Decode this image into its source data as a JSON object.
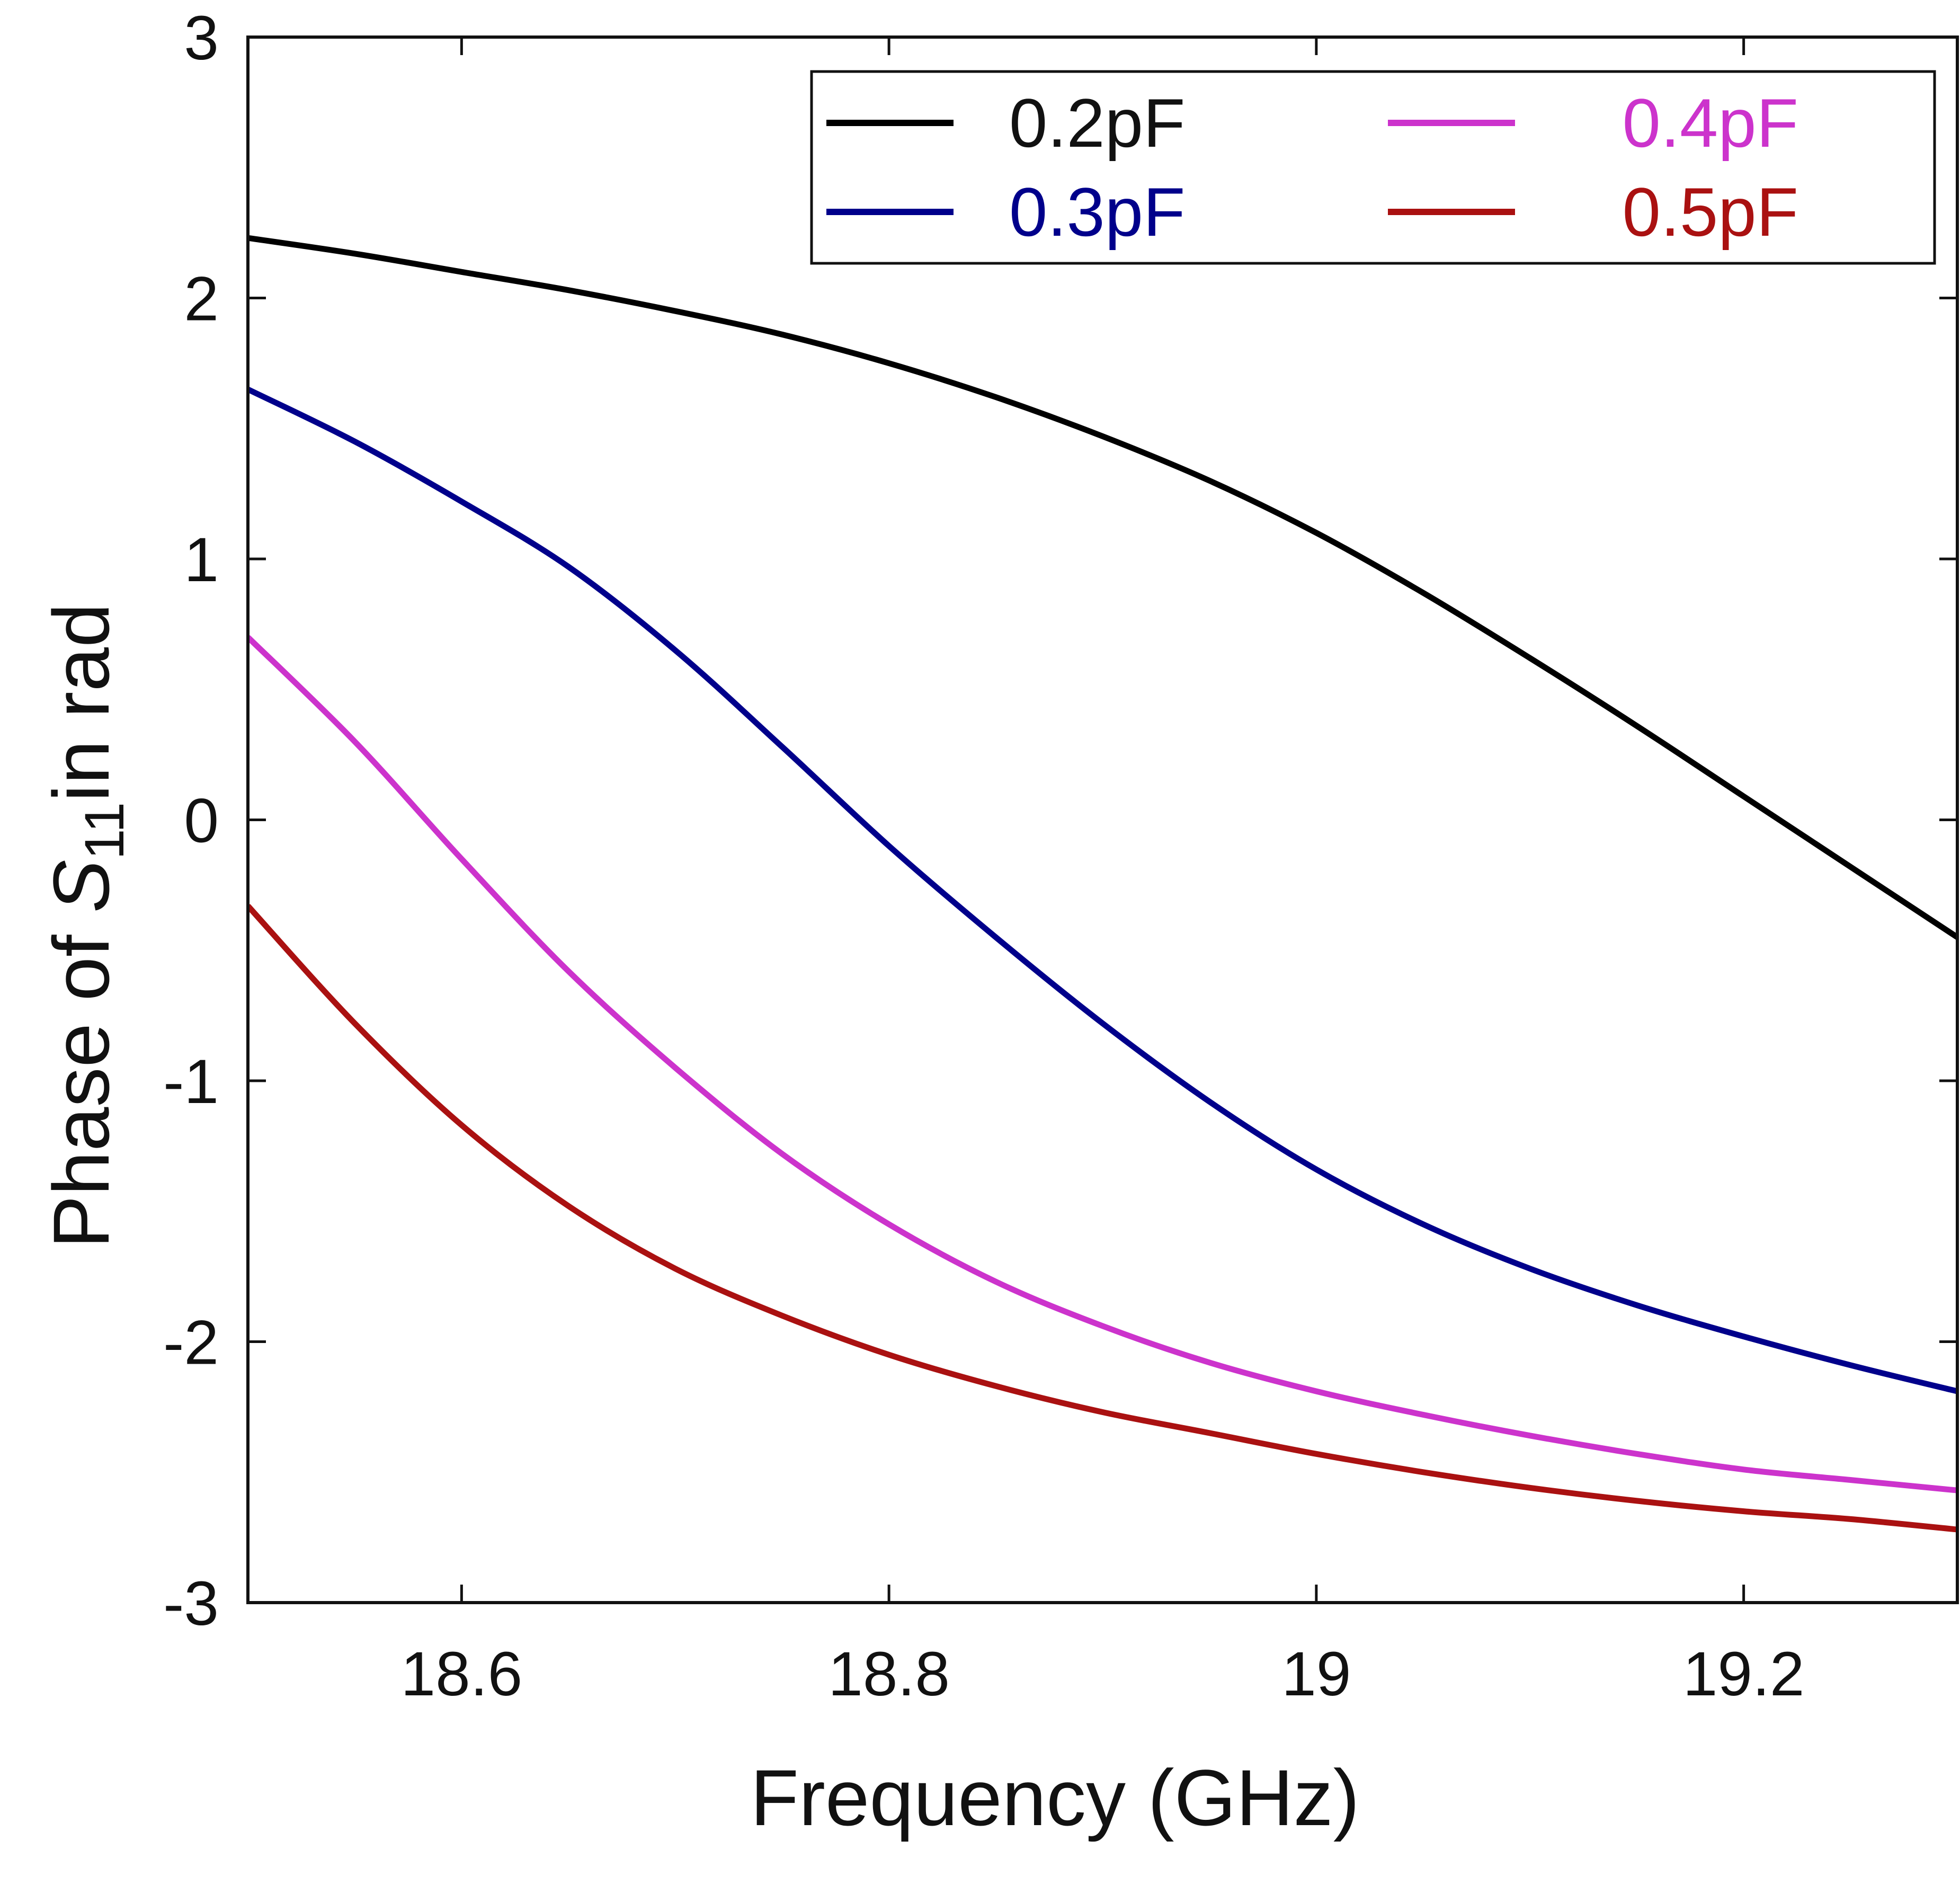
{
  "chart_data": {
    "type": "line",
    "title": "",
    "xlabel": "Frequency (GHz)",
    "ylabel": {
      "prefix": "Phase of ",
      "symbol": "S",
      "subscript": "11",
      "suffix": "in rad"
    },
    "xlim": [
      18.5,
      19.3
    ],
    "ylim": [
      -3,
      3
    ],
    "xticks": [
      18.6,
      18.8,
      19,
      19.2
    ],
    "xtick_labels": [
      "18.6",
      "18.8",
      "19",
      "19.2"
    ],
    "yticks": [
      3,
      2,
      1,
      0,
      -1,
      -2,
      -3
    ],
    "ytick_labels": [
      "3",
      "2",
      "1",
      "0",
      "-1",
      "-2",
      "-3"
    ],
    "grid": false,
    "legend_position": "top-right",
    "series": [
      {
        "name": "0.2pF",
        "color": "#000000",
        "x": [
          18.5,
          18.55,
          18.6,
          18.65,
          18.7,
          18.75,
          18.8,
          18.85,
          18.9,
          18.95,
          19.0,
          19.05,
          19.1,
          19.15,
          19.2,
          19.25,
          19.3
        ],
        "y": [
          2.23,
          2.17,
          2.1,
          2.03,
          1.95,
          1.86,
          1.75,
          1.62,
          1.47,
          1.3,
          1.1,
          0.87,
          0.62,
          0.36,
          0.09,
          -0.18,
          -0.45
        ]
      },
      {
        "name": "0.3pF",
        "color": "#00008b",
        "x": [
          18.5,
          18.55,
          18.6,
          18.65,
          18.7,
          18.75,
          18.8,
          18.85,
          18.9,
          18.95,
          19.0,
          19.05,
          19.1,
          19.15,
          19.2,
          19.25,
          19.3
        ],
        "y": [
          1.65,
          1.45,
          1.22,
          0.97,
          0.65,
          0.28,
          -0.1,
          -0.45,
          -0.78,
          -1.08,
          -1.34,
          -1.55,
          -1.72,
          -1.86,
          -1.98,
          -2.09,
          -2.19
        ]
      },
      {
        "name": "0.4pF",
        "color": "#cc33cc",
        "x": [
          18.5,
          18.55,
          18.6,
          18.65,
          18.7,
          18.75,
          18.8,
          18.85,
          18.9,
          18.95,
          19.0,
          19.05,
          19.1,
          19.15,
          19.2,
          19.25,
          19.3
        ],
        "y": [
          0.7,
          0.3,
          -0.15,
          -0.58,
          -0.95,
          -1.28,
          -1.55,
          -1.77,
          -1.94,
          -2.08,
          -2.19,
          -2.28,
          -2.36,
          -2.43,
          -2.49,
          -2.53,
          -2.57
        ]
      },
      {
        "name": "0.5pF",
        "color": "#aa1111",
        "x": [
          18.5,
          18.55,
          18.6,
          18.65,
          18.7,
          18.75,
          18.8,
          18.85,
          18.9,
          18.95,
          19.0,
          19.05,
          19.1,
          19.15,
          19.2,
          19.25,
          19.3
        ],
        "y": [
          -0.33,
          -0.78,
          -1.17,
          -1.48,
          -1.72,
          -1.9,
          -2.05,
          -2.17,
          -2.27,
          -2.35,
          -2.43,
          -2.5,
          -2.56,
          -2.61,
          -2.65,
          -2.68,
          -2.72
        ]
      }
    ]
  }
}
